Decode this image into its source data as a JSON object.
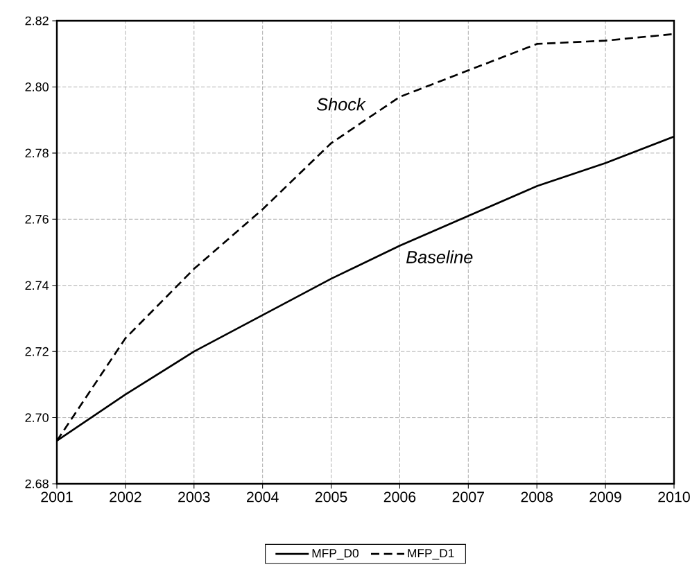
{
  "chart_data": {
    "type": "line",
    "x": [
      2001,
      2002,
      2003,
      2004,
      2005,
      2006,
      2007,
      2008,
      2009,
      2010
    ],
    "series": [
      {
        "name": "MFP_D0",
        "color": "#000000",
        "line_style": "solid",
        "values": [
          2.693,
          2.707,
          2.72,
          2.731,
          2.742,
          2.752,
          2.761,
          2.77,
          2.777,
          2.785
        ]
      },
      {
        "name": "MFP_D1",
        "color": "#000000",
        "line_style": "dashed",
        "values": [
          2.693,
          2.724,
          2.745,
          2.763,
          2.783,
          2.797,
          2.805,
          2.813,
          2.814,
          2.816
        ]
      }
    ],
    "xlim": [
      2001,
      2010
    ],
    "ylim": [
      2.68,
      2.82
    ],
    "xticks": [
      2001,
      2002,
      2003,
      2004,
      2005,
      2006,
      2007,
      2008,
      2009,
      2010
    ],
    "yticks": [
      2.68,
      {
        "value": 2.7,
        "label": "2.70"
      },
      2.72,
      2.74,
      2.76,
      2.78,
      {
        "value": 2.8,
        "label": "2.80"
      },
      2.82
    ],
    "annotations": [
      "Shock",
      "Baseline"
    ],
    "grid": true,
    "legend": "bottom"
  }
}
